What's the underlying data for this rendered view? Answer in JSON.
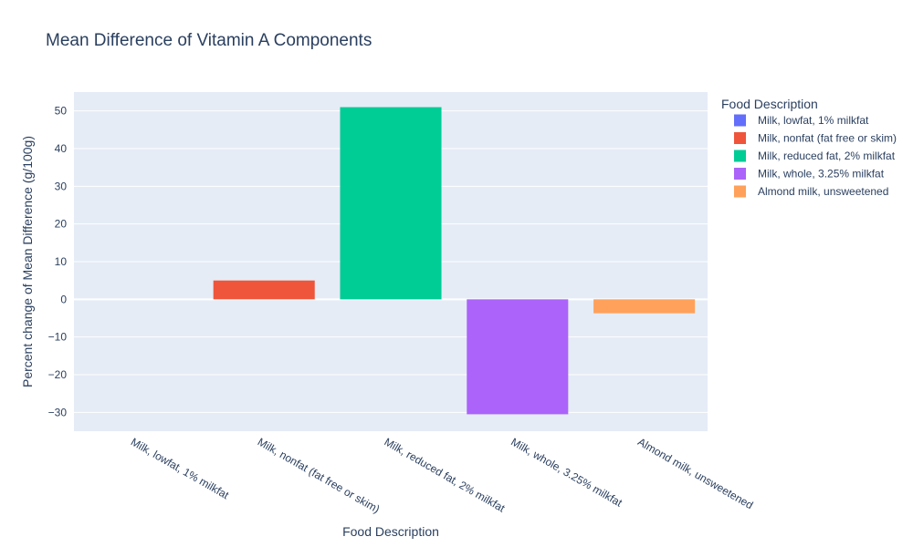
{
  "chart_data": {
    "type": "bar",
    "title": "Mean Difference of Vitamin A Components",
    "xlabel": "Food Description",
    "ylabel": "Percent change of Mean Difference (g/100g)",
    "categories": [
      "Milk, lowfat, 1% milkfat",
      "Milk, nonfat (fat free or skim)",
      "Milk, reduced fat, 2% milkfat",
      "Milk, whole, 3.25% milkfat",
      "Almond milk, unsweetened"
    ],
    "values": [
      0,
      5,
      51,
      -30.5,
      -3.7
    ],
    "colors": [
      "#636efa",
      "#ef553b",
      "#00cc96",
      "#ab63fa",
      "#ffa15a"
    ],
    "ylim": [
      -35,
      55
    ],
    "yticks": [
      50,
      40,
      30,
      20,
      10,
      0,
      -10,
      -20,
      -30
    ],
    "ytick_labels": [
      "50",
      "40",
      "30",
      "20",
      "10",
      "0",
      "−10",
      "−20",
      "−30"
    ],
    "grid": true,
    "legend": {
      "title": "Food Description",
      "placement": "right",
      "entries": [
        "Milk, lowfat, 1% milkfat",
        "Milk, nonfat (fat free or skim)",
        "Milk, reduced fat, 2% milkfat",
        "Milk, whole, 3.25% milkfat",
        "Almond milk, unsweetened"
      ]
    },
    "plot_background": "#e5ecf6",
    "gridline_color": "#ffffff"
  }
}
